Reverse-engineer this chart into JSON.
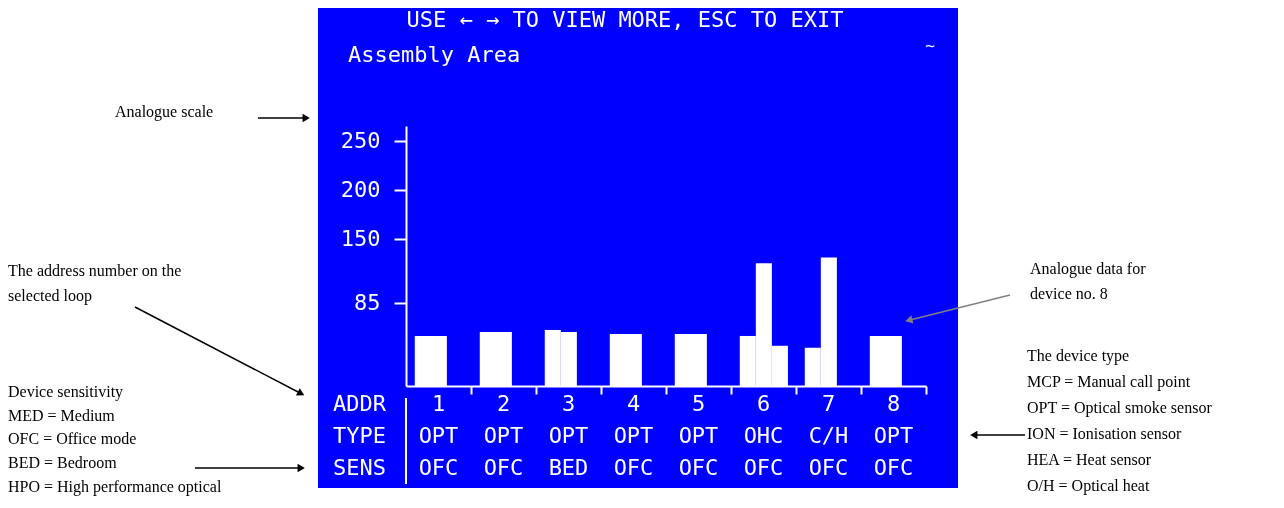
{
  "chart_data": {
    "type": "bar",
    "title": "Assembly Area",
    "categories": [
      "1\nOPT\nOFC",
      "2\nOPT\nOFC",
      "3\nOPT\nBED",
      "4\nOPT\nOFC",
      "5\nOPT\nOFC",
      "6\nOHC\nOFC",
      "7\nC/H\nOFC",
      "8\nOPT\nOFC"
    ],
    "series": [
      {
        "color": "#ffffff",
        "values": [
          51,
          55,
          57,
          53,
          53,
          51,
          39,
          51
        ]
      },
      {
        "color": "#ffffff",
        "values": [
          null,
          null,
          55,
          null,
          null,
          125,
          131,
          null
        ]
      },
      {
        "color": "#ffffff",
        "values": [
          null,
          null,
          null,
          null,
          null,
          41,
          null,
          null
        ]
      }
    ],
    "ylim": [
      0,
      265
    ],
    "yticks": [
      85,
      150,
      200,
      250
    ],
    "annotations": [
      "USE ← → TO VIEW MORE, ESC TO EXIT",
      "~",
      "ADDR\nTYPE\nSENS",
      "Analogue scale",
      "The address number on the\nselected loop",
      "Device sensitivity\nMED = Medium\nOFC = Office mode\nBED = Bedroom\nHPO = High performance optical",
      "Analogue data for\ndevice no. 8",
      "The device type\nMCP = Manual call point\nOPT = Optical smoke sensor\nION = Ionisation sensor\nHEA = Heat sensor\nO/H = Optical heat"
    ]
  }
}
